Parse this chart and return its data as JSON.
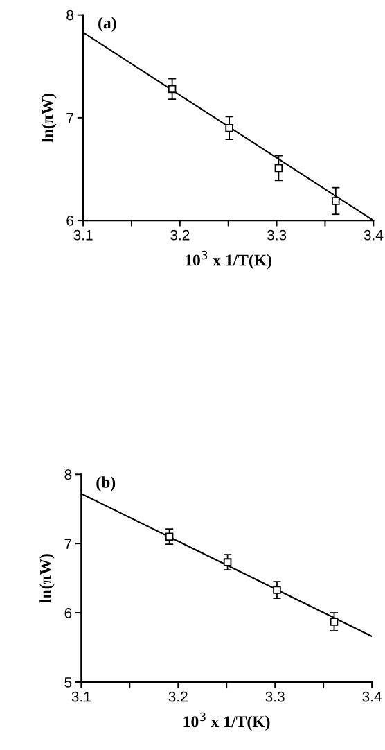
{
  "chart_data": [
    {
      "type": "scatter",
      "xlabel": "10$^{3}$ x 1/T(K)",
      "ylabel": "ln(πW)",
      "annotations": [
        "(a)"
      ],
      "xlim": [
        3.1,
        3.4
      ],
      "ylim": [
        6,
        8
      ],
      "xticks": [
        3.1,
        {
          "value": 3.15,
          "label": null
        },
        3.2,
        {
          "value": 3.25,
          "label": null
        },
        3.3,
        {
          "value": 3.35,
          "label": null
        },
        3.4
      ],
      "yticks": [
        6,
        7,
        8
      ],
      "grid": false,
      "legend": false,
      "series": [
        {
          "type": "scatter",
          "color": "#000000",
          "marker": "square",
          "x": [
            3.192,
            3.251,
            3.302,
            3.361
          ],
          "values": [
            7.28,
            6.9,
            6.51,
            6.19
          ],
          "errors": [
            0.1,
            0.11,
            0.12,
            0.13
          ]
        },
        {
          "type": "line",
          "color": "#000000",
          "marker": "none",
          "line_style": "solid",
          "x": [
            3.1,
            3.4
          ],
          "values": [
            7.83,
            6.0
          ]
        }
      ]
    },
    {
      "type": "scatter",
      "xlabel": "10$^{3}$ x 1/T(K)",
      "ylabel": "ln(πW)",
      "annotations": [
        "(b)"
      ],
      "xlim": [
        3.1,
        3.4
      ],
      "ylim": [
        5,
        8
      ],
      "xticks": [
        3.1,
        {
          "value": 3.15,
          "label": null
        },
        3.2,
        {
          "value": 3.25,
          "label": null
        },
        3.3,
        {
          "value": 3.35,
          "label": null
        },
        3.4
      ],
      "yticks": [
        5,
        6,
        7,
        8
      ],
      "grid": false,
      "legend": false,
      "series": [
        {
          "type": "scatter",
          "color": "#000000",
          "marker": "square",
          "x": [
            3.191,
            3.251,
            3.302,
            3.361
          ],
          "values": [
            7.1,
            6.73,
            6.33,
            5.87
          ],
          "errors": [
            0.11,
            0.11,
            0.12,
            0.13
          ]
        },
        {
          "type": "line",
          "color": "#000000",
          "marker": "none",
          "line_style": "solid",
          "x": [
            3.1,
            3.4
          ],
          "values": [
            7.72,
            5.66
          ]
        }
      ]
    }
  ]
}
